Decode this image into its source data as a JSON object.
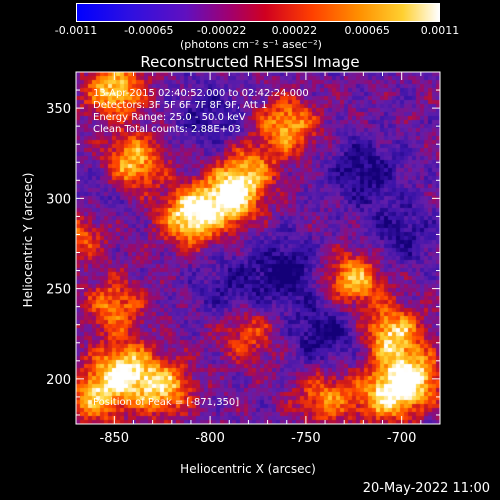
{
  "colorbar": {
    "ticks": [
      "-0.0011",
      "-0.00065",
      "-0.00022",
      "0.00022",
      "0.00065",
      "0.0011"
    ],
    "unit": "(photons cm⁻² s⁻¹ asec⁻²)"
  },
  "chart_data": {
    "type": "heatmap",
    "title": "Reconstructed RHESSI Image",
    "xlabel": "Heliocentric X (arcsec)",
    "ylabel": "Heliocentric Y (arcsec)",
    "xlim": [
      -870,
      -680
    ],
    "ylim": [
      175,
      370
    ],
    "x_ticks": [
      -850,
      -800,
      -750,
      -700
    ],
    "y_ticks": [
      200,
      250,
      300,
      350
    ],
    "x_tick_labels": [
      "-850",
      "-800",
      "-750",
      "-700"
    ],
    "y_tick_labels": [
      "200",
      "250",
      "300",
      "350"
    ],
    "value_range": [
      -0.0011,
      0.0011
    ],
    "annotations": [
      "13-Apr-2015 02:40:52.000 to 02:42:24.000",
      "Detectors: 3F 5F 6F 7F 8F 9F, Att 1",
      "Energy Range: 25.0 - 50.0 keV",
      "Clean     Total counts: 2.88E+03"
    ],
    "peak_label": "Position of Peak = [-871,350]",
    "peak_position": [
      -871,
      350
    ],
    "bright_regions": [
      {
        "x": -810,
        "y": 290,
        "intensity": 1.0
      },
      {
        "x": -790,
        "y": 300,
        "intensity": 0.9
      },
      {
        "x": -840,
        "y": 320,
        "intensity": 0.8
      },
      {
        "x": -850,
        "y": 360,
        "intensity": 0.85
      },
      {
        "x": -760,
        "y": 340,
        "intensity": 0.75
      },
      {
        "x": -780,
        "y": 315,
        "intensity": 0.6
      },
      {
        "x": -725,
        "y": 255,
        "intensity": 0.8
      },
      {
        "x": -705,
        "y": 225,
        "intensity": 0.85
      },
      {
        "x": -695,
        "y": 200,
        "intensity": 0.95
      },
      {
        "x": -710,
        "y": 190,
        "intensity": 0.7
      },
      {
        "x": -850,
        "y": 240,
        "intensity": 0.6
      },
      {
        "x": -845,
        "y": 205,
        "intensity": 0.85
      },
      {
        "x": -825,
        "y": 195,
        "intensity": 0.8
      },
      {
        "x": -860,
        "y": 190,
        "intensity": 0.7
      },
      {
        "x": -780,
        "y": 225,
        "intensity": 0.45
      },
      {
        "x": -740,
        "y": 190,
        "intensity": 0.6
      },
      {
        "x": -870,
        "y": 280,
        "intensity": 0.55
      }
    ],
    "dark_regions": [
      {
        "x": -760,
        "y": 260,
        "intensity": 1.0
      },
      {
        "x": -740,
        "y": 225,
        "intensity": 0.9
      },
      {
        "x": -720,
        "y": 315,
        "intensity": 0.9
      },
      {
        "x": -800,
        "y": 345,
        "intensity": 0.7
      },
      {
        "x": -860,
        "y": 300,
        "intensity": 0.4
      },
      {
        "x": -790,
        "y": 250,
        "intensity": 0.6
      },
      {
        "x": -700,
        "y": 280,
        "intensity": 0.7
      }
    ]
  },
  "footer": "20-May-2022 11:00"
}
